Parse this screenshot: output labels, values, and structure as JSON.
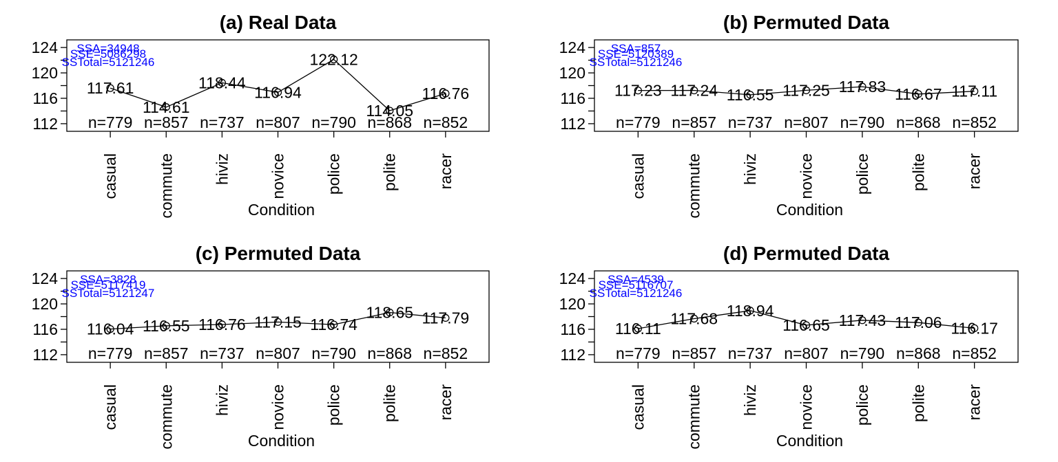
{
  "chart_data": [
    {
      "type": "line",
      "title": "(a) Real Data",
      "xlabel": "Condition",
      "ylabel": "",
      "categories": [
        "casual",
        "commute",
        "hiviz",
        "novice",
        "police",
        "polite",
        "racer"
      ],
      "values": [
        117.61,
        114.61,
        118.44,
        116.94,
        122.12,
        114.05,
        116.76
      ],
      "value_labels": [
        "117.61",
        "114.61",
        "118.44",
        "116.94",
        "122.12",
        "114.05",
        "116.76"
      ],
      "n_labels": [
        "n=779",
        "n=857",
        "n=737",
        "n=807",
        "n=790",
        "n=868",
        "n=852"
      ],
      "annotations": [
        "SSA=34948",
        "SSE=5086298",
        "SSTotal=5121246"
      ],
      "yticks": [
        "112",
        "116",
        "120",
        "124"
      ],
      "ylim": [
        110.8,
        125.2
      ],
      "grid": false,
      "legend": "none"
    },
    {
      "type": "line",
      "title": "(b) Permuted Data",
      "xlabel": "Condition",
      "ylabel": "",
      "categories": [
        "casual",
        "commute",
        "hiviz",
        "novice",
        "police",
        "polite",
        "racer"
      ],
      "values": [
        117.23,
        117.24,
        116.55,
        117.25,
        117.83,
        116.67,
        117.11
      ],
      "value_labels": [
        "117.23",
        "117.24",
        "116.55",
        "117.25",
        "117.83",
        "116.67",
        "117.11"
      ],
      "n_labels": [
        "n=779",
        "n=857",
        "n=737",
        "n=807",
        "n=790",
        "n=868",
        "n=852"
      ],
      "annotations": [
        "SSA=857",
        "SSE=5120389",
        "SSTotal=5121246"
      ],
      "yticks": [
        "112",
        "116",
        "120",
        "124"
      ],
      "ylim": [
        110.8,
        125.2
      ],
      "grid": false,
      "legend": "none"
    },
    {
      "type": "line",
      "title": "(c) Permuted Data",
      "xlabel": "Condition",
      "ylabel": "",
      "categories": [
        "casual",
        "commute",
        "hiviz",
        "novice",
        "police",
        "polite",
        "racer"
      ],
      "values": [
        116.04,
        116.55,
        116.76,
        117.15,
        116.74,
        118.65,
        117.79
      ],
      "value_labels": [
        "116.04",
        "116.55",
        "116.76",
        "117.15",
        "116.74",
        "118.65",
        "117.79"
      ],
      "n_labels": [
        "n=779",
        "n=857",
        "n=737",
        "n=807",
        "n=790",
        "n=868",
        "n=852"
      ],
      "annotations": [
        "SSA=3828",
        "SSE=5117419",
        "SSTotal=5121247"
      ],
      "yticks": [
        "112",
        "116",
        "120",
        "124"
      ],
      "ylim": [
        110.8,
        125.2
      ],
      "grid": false,
      "legend": "none"
    },
    {
      "type": "line",
      "title": "(d) Permuted Data",
      "xlabel": "Condition",
      "ylabel": "",
      "categories": [
        "casual",
        "commute",
        "hiviz",
        "novice",
        "police",
        "polite",
        "racer"
      ],
      "values": [
        116.11,
        117.68,
        118.94,
        116.65,
        117.43,
        117.06,
        116.17
      ],
      "value_labels": [
        "116.11",
        "117.68",
        "118.94",
        "116.65",
        "117.43",
        "117.06",
        "116.17"
      ],
      "n_labels": [
        "n=779",
        "n=857",
        "n=737",
        "n=807",
        "n=790",
        "n=868",
        "n=852"
      ],
      "annotations": [
        "SSA=4539",
        "SSE=5116707",
        "SSTotal=5121246"
      ],
      "yticks": [
        "112",
        "116",
        "120",
        "124"
      ],
      "ylim": [
        110.8,
        125.2
      ],
      "grid": false,
      "legend": "none"
    }
  ]
}
